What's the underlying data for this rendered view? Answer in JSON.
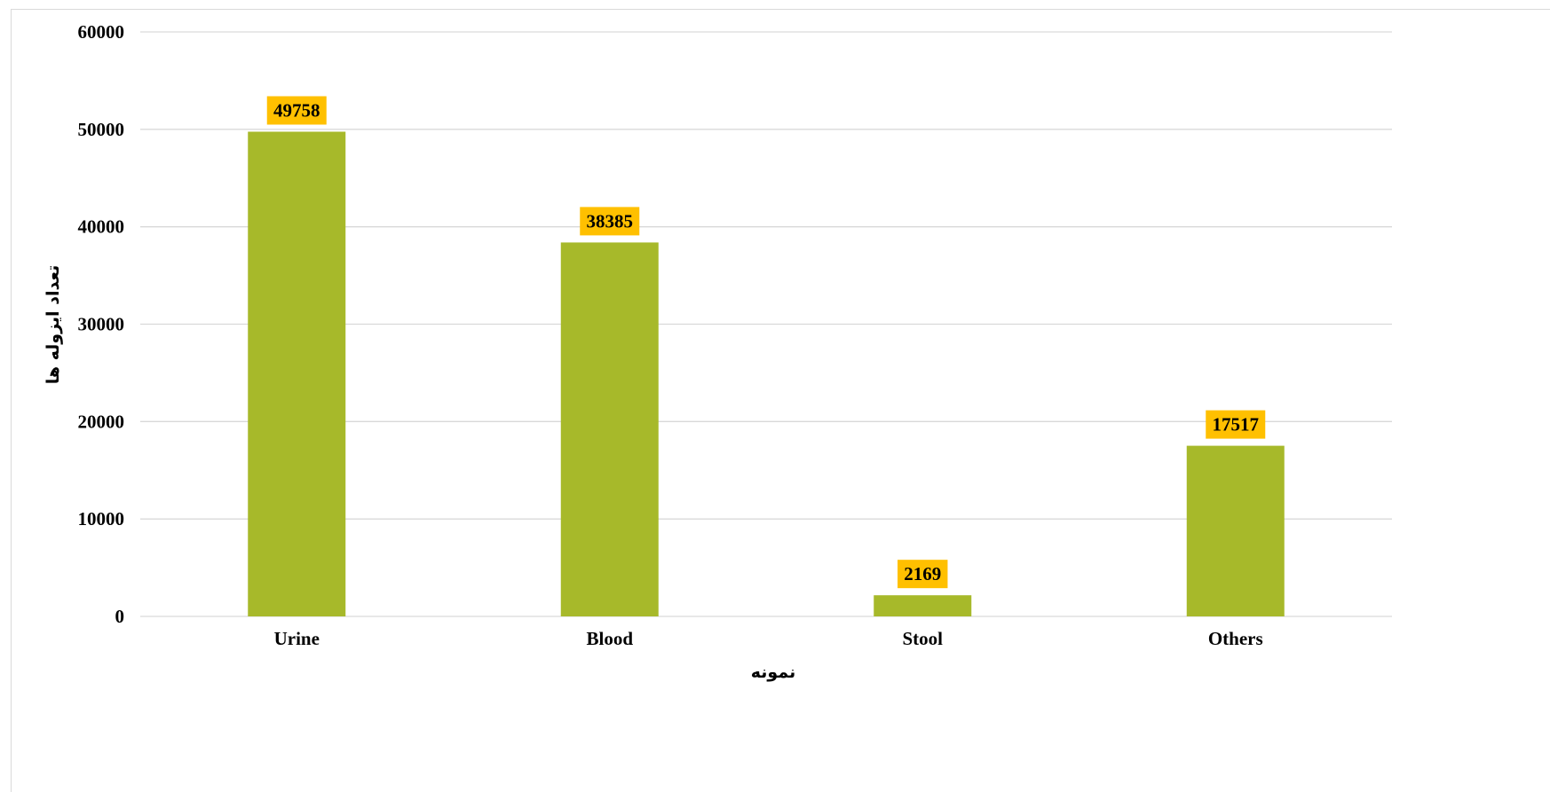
{
  "chart_data": {
    "type": "bar",
    "categories": [
      "Urine",
      "Blood",
      "Stool",
      "Others"
    ],
    "values": [
      49758,
      38385,
      2169,
      17517
    ],
    "data_labels": [
      "49758",
      "38385",
      "2169",
      "17517"
    ],
    "title": "",
    "xlabel": "نمونه",
    "ylabel": "تعداد ایزوله ها",
    "ylim": [
      0,
      60000
    ],
    "yticks": [
      0,
      10000,
      20000,
      30000,
      40000,
      50000,
      60000
    ],
    "ytick_labels": [
      "0",
      "10000",
      "20000",
      "30000",
      "40000",
      "50000",
      "60000"
    ],
    "grid": true,
    "legend": "none",
    "colors": {
      "bar": "#a7b92a",
      "data_label_bg": "#ffc000",
      "gridline": "#d9d9d9",
      "text": "#000000"
    }
  }
}
